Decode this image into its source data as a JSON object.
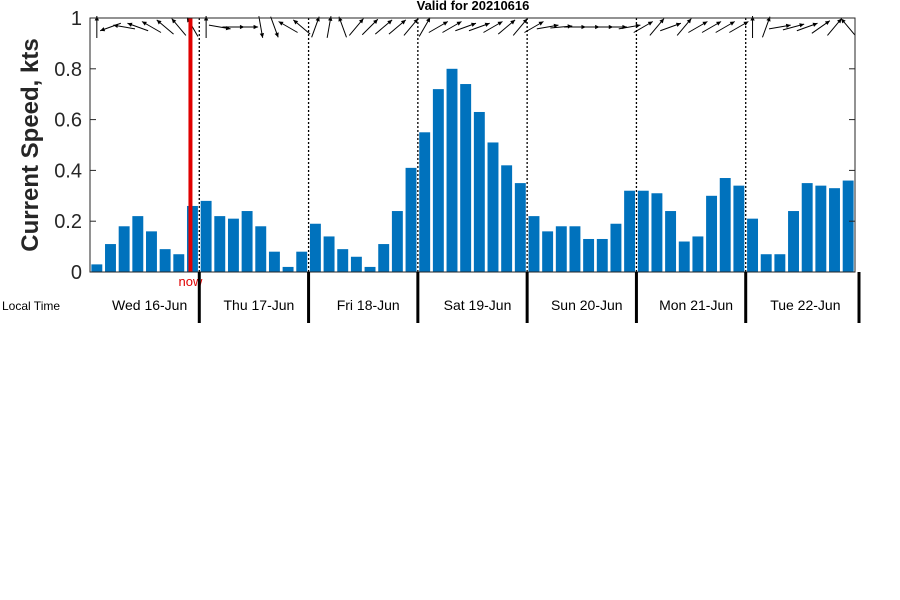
{
  "chart_data": {
    "type": "bar",
    "title": "Valid for 20210616",
    "ylabel": "Current Speed, kts",
    "ylim": [
      0,
      1
    ],
    "yticks": [
      "0",
      "0.2",
      "0.4",
      "0.6",
      "0.8",
      "1"
    ],
    "ytick_values": [
      0,
      0.2,
      0.4,
      0.6,
      0.8,
      1
    ],
    "x_caption": "Local Time",
    "days": [
      "Wed 16-Jun",
      "Thu 17-Jun",
      "Fri 18-Jun",
      "Sat 19-Jun",
      "Sun 20-Jun",
      "Mon 21-Jun",
      "Tue 22-Jun"
    ],
    "now_label": "now",
    "now_index": 7.5,
    "bar_color": "#0072BD",
    "now_color": "#e00000",
    "values": [
      0.03,
      0.11,
      0.18,
      0.22,
      0.16,
      0.09,
      0.07,
      0.26,
      0.28,
      0.22,
      0.21,
      0.24,
      0.18,
      0.08,
      0.02,
      0.08,
      0.19,
      0.14,
      0.09,
      0.06,
      0.02,
      0.11,
      0.24,
      0.41,
      0.55,
      0.72,
      0.8,
      0.74,
      0.63,
      0.51,
      0.42,
      0.35,
      0.22,
      0.16,
      0.18,
      0.18,
      0.13,
      0.13,
      0.19,
      0.32,
      0.32,
      0.31,
      0.24,
      0.12,
      0.14,
      0.3,
      0.37,
      0.34,
      0.21,
      0.07,
      0.07,
      0.24,
      0.35,
      0.34,
      0.33,
      0.36
    ],
    "directions_deg": [
      0,
      250,
      280,
      290,
      300,
      310,
      320,
      330,
      0,
      100,
      90,
      90,
      170,
      160,
      300,
      310,
      20,
      10,
      340,
      40,
      45,
      50,
      50,
      40,
      30,
      60,
      60,
      70,
      70,
      60,
      50,
      40,
      60,
      80,
      85,
      90,
      90,
      90,
      90,
      80,
      60,
      40,
      70,
      40,
      60,
      60,
      60,
      60,
      0,
      20,
      80,
      75,
      70,
      55,
      40,
      320
    ]
  }
}
